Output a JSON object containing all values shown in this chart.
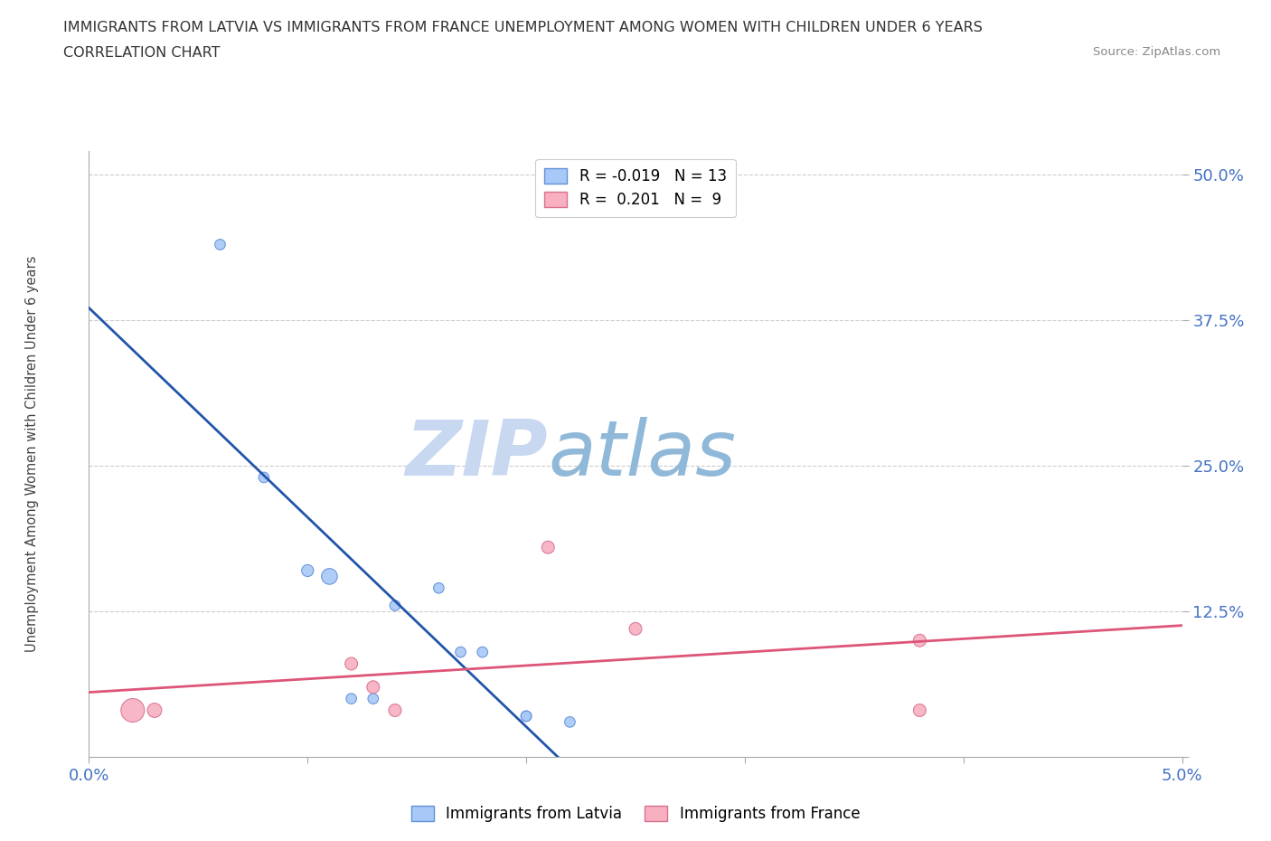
{
  "title_line1": "IMMIGRANTS FROM LATVIA VS IMMIGRANTS FROM FRANCE UNEMPLOYMENT AMONG WOMEN WITH CHILDREN UNDER 6 YEARS",
  "title_line2": "CORRELATION CHART",
  "source_text": "Source: ZipAtlas.com",
  "ylabel": "Unemployment Among Women with Children Under 6 years",
  "xlim": [
    0.0,
    0.05
  ],
  "ylim": [
    0.0,
    0.52
  ],
  "yticks": [
    0.0,
    0.125,
    0.25,
    0.375,
    0.5
  ],
  "ytick_labels": [
    "",
    "12.5%",
    "25.0%",
    "37.5%",
    "50.0%"
  ],
  "xticks": [
    0.0,
    0.01,
    0.02,
    0.03,
    0.04,
    0.05
  ],
  "xtick_labels": [
    "0.0%",
    "",
    "",
    "",
    "",
    "5.0%"
  ],
  "latvia_x": [
    0.006,
    0.008,
    0.01,
    0.011,
    0.012,
    0.013,
    0.014,
    0.016,
    0.017,
    0.018,
    0.02,
    0.02,
    0.022
  ],
  "latvia_y": [
    0.44,
    0.24,
    0.16,
    0.155,
    0.05,
    0.05,
    0.13,
    0.145,
    0.09,
    0.09,
    0.035,
    0.035,
    0.03
  ],
  "latvia_sizes": [
    70,
    70,
    90,
    160,
    70,
    70,
    70,
    70,
    70,
    70,
    70,
    70,
    70
  ],
  "france_x": [
    0.002,
    0.003,
    0.012,
    0.013,
    0.014,
    0.021,
    0.025,
    0.038,
    0.038
  ],
  "france_y": [
    0.04,
    0.04,
    0.08,
    0.06,
    0.04,
    0.18,
    0.11,
    0.04,
    0.1
  ],
  "france_sizes": [
    350,
    130,
    100,
    100,
    100,
    100,
    100,
    100,
    100
  ],
  "latvia_color": "#a8c8f8",
  "france_color": "#f8b0c0",
  "latvia_edge_color": "#6090d8",
  "france_edge_color": "#d87090",
  "latvia_line_color": "#2255aa",
  "france_line_color": "#dd5577",
  "watermark_zip": "ZIP",
  "watermark_atlas": "atlas",
  "watermark_color_zip": "#c8d8f0",
  "watermark_color_atlas": "#90b8d8",
  "R_latvia": -0.019,
  "N_latvia": 13,
  "R_france": 0.201,
  "N_france": 9,
  "background_color": "#ffffff",
  "grid_color": "#cccccc"
}
